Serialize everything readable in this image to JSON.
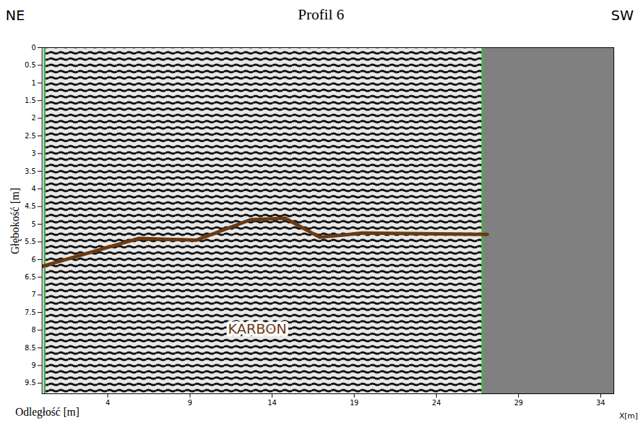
{
  "chart_data": {
    "type": "line",
    "title": "Profil 6",
    "direction_labels": [
      "NE",
      "SW"
    ],
    "x_label": "Odległość [m]",
    "x_unit_label": "X[m]",
    "y_label": "Głębokość [m]",
    "x": [
      -0.36,
      5.9,
      9.4,
      12.7,
      14.8,
      16.9,
      19.5,
      27.1
    ],
    "series": [
      {
        "color": "#6b3a12",
        "values": [
          6.24,
          5.4,
          5.45,
          4.87,
          4.83,
          5.37,
          5.25,
          5.29
        ]
      }
    ],
    "xlim": [
      0,
      34.8
    ],
    "xticks": [
      4,
      9,
      14,
      19,
      24,
      29,
      34
    ],
    "ylim": [
      0,
      9.8
    ],
    "yticks": [
      0,
      0.5,
      1,
      1.5,
      2,
      2.5,
      3,
      3.5,
      4,
      4.5,
      5,
      5.5,
      6,
      6.5,
      7,
      7.5,
      8,
      8.5,
      9,
      9.5
    ],
    "profile_extent": [
      0.15,
      26.8
    ],
    "profile_extent_color": "#4caf50",
    "no_data_color": "#808080",
    "annotations": [
      {
        "text": "KARBON",
        "x": 13.1,
        "y": 7.98,
        "color": "#6b3a12"
      }
    ]
  }
}
